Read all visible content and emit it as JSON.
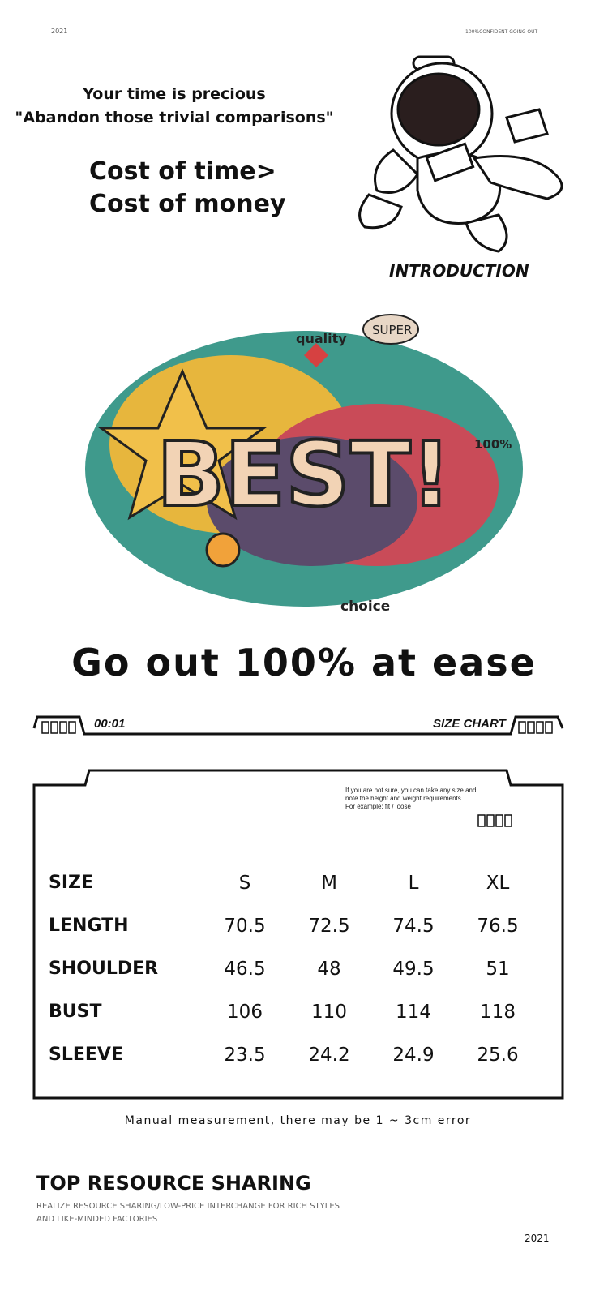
{
  "header": {
    "year": "2021",
    "slogan": "100%CONFIDENT GOING OUT"
  },
  "intro": {
    "line1": "Your time is precious",
    "line2": "\"Abandon those trivial comparisons\"",
    "cost1": "Cost of time>",
    "cost2": "Cost of money",
    "label": "INTRODUCTION"
  },
  "illustration": {
    "text": "BEST!",
    "words": [
      "quality",
      "SUPER",
      "100%",
      "choice"
    ]
  },
  "headline": "Go out 100% at ease",
  "chart_bar": {
    "left": "00:01",
    "right": "SIZE CHART"
  },
  "size_chart": {
    "note": [
      "If you are not sure, you can take any size and",
      "note the height and weight requirements.",
      "For example: fit / loose"
    ],
    "header": [
      "SIZE",
      "S",
      "M",
      "L",
      "XL"
    ],
    "rows": [
      [
        "LENGTH",
        "70.5",
        "72.5",
        "74.5",
        "76.5"
      ],
      [
        "SHOULDER",
        "46.5",
        "48",
        "49.5",
        "51"
      ],
      [
        "BUST",
        "106",
        "110",
        "114",
        "118"
      ],
      [
        "SLEEVE",
        "23.5",
        "24.2",
        "24.9",
        "25.6"
      ]
    ]
  },
  "disclaimer": "Manual measurement, there may be 1 ~ 3cm error",
  "footer": {
    "title": "TOP RESOURCE SHARING",
    "subtitle": "REALIZE RESOURCE SHARING/LOW-PRICE INTERCHANGE FOR RICH STYLES AND LIKE-MINDED FACTORIES",
    "year": "2021"
  }
}
